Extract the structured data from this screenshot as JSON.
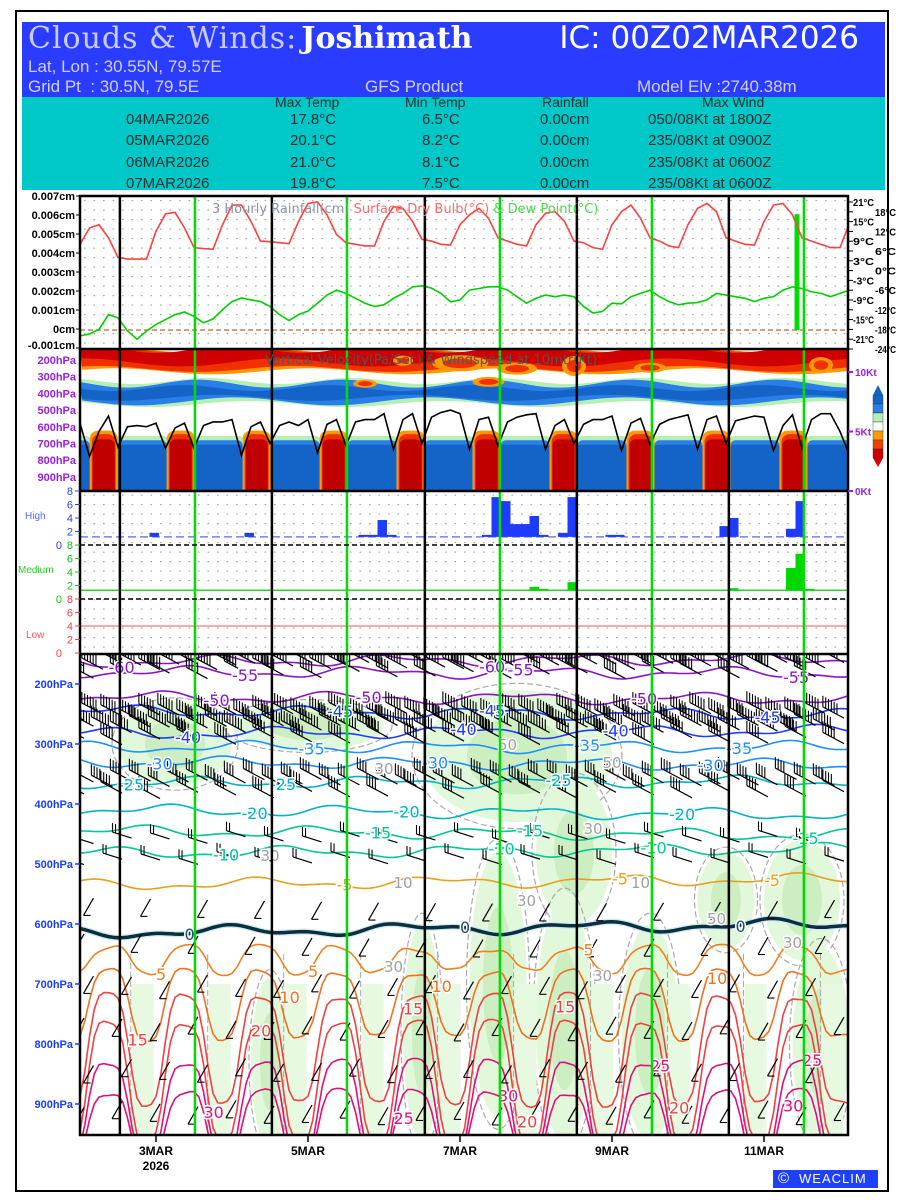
{
  "header": {
    "title_prefix": "Clouds & Winds:",
    "station": "Joshimath",
    "ic": "IC: 00Z02MAR2026",
    "latlon": "Lat, Lon : 30.55N, 79.57E",
    "gridpt": "Grid Pt  : 30.5N, 79.5E",
    "product": "GFS Product",
    "elevation": "Model Elv :2740.38m"
  },
  "summary": {
    "columns": [
      "Max Temp",
      "Min Temp",
      "Rainfall",
      "Max Wind"
    ],
    "rows": [
      {
        "date": "04MAR2026",
        "max": "17.8°C",
        "min": "6.5°C",
        "rain": "0.00cm",
        "wind": "050/08Kt at 1800Z"
      },
      {
        "date": "05MAR2026",
        "max": "20.1°C",
        "min": "8.2°C",
        "rain": "0.00cm",
        "wind": "235/08Kt at 0900Z"
      },
      {
        "date": "06MAR2026",
        "max": "21.0°C",
        "min": "8.1°C",
        "rain": "0.00cm",
        "wind": "235/08Kt at 0600Z"
      },
      {
        "date": "07MAR2026",
        "max": "19.8°C",
        "min": "7.5°C",
        "rain": "0.00cm",
        "wind": "235/08Kt at 0600Z"
      }
    ]
  },
  "footer": {
    "brand": "WEACLIM",
    "copyright_symbol": "©"
  },
  "colors": {
    "header_bg": "#2a3cff",
    "table_bg": "#00c8c8",
    "drybulb": "#ff4040",
    "dewpoint": "#00d000",
    "rain": "#00dd00",
    "high_cloud": "#1e3cff",
    "medium_cloud": "#00d800",
    "low_cloud": "#ff4040",
    "day_line_black": "#000000",
    "day_line_green": "#00dd00"
  },
  "chart_data": {
    "type": "meteogram",
    "time_axis": {
      "step_hours": 3,
      "start": "00Z02MAR2026",
      "tick_labels": [
        {
          "step": 8,
          "label": "3MAR",
          "sub": "2026"
        },
        {
          "step": 24,
          "label": "5MAR"
        },
        {
          "step": 40,
          "label": "7MAR"
        },
        {
          "step": 56,
          "label": "9MAR"
        },
        {
          "step": 72,
          "label": "11MAR"
        }
      ],
      "black_line_steps": [
        4.2,
        20.2,
        36.3,
        52.3,
        68.3
      ],
      "green_line_steps": [
        12.1,
        28.1,
        44.2,
        60.2,
        76.2
      ]
    },
    "surface": {
      "title_parts": [
        "3 Hourly Rainfall(cm)",
        " Surface Dry Bulb(°C)",
        " & Dew Point(°C)"
      ],
      "rain_axis": {
        "min": -0.001,
        "max": 0.007,
        "ticks": [
          "0.007cm",
          "0.006cm",
          "0.005cm",
          "0.004cm",
          "0.003cm",
          "0.002cm",
          "0.001cm",
          "0cm",
          "-0.001cm"
        ]
      },
      "temp_axis": {
        "min": -24,
        "max": 21,
        "ticks": [
          "21°C",
          "18°C",
          "15°C",
          "12°C",
          "9°C",
          "6°C",
          "3°C",
          "0°C",
          "-3°C",
          "-6°C",
          "-9°C",
          "-12°C",
          "-15°C",
          "-18°C",
          "-21°C",
          "-24°C"
        ]
      },
      "drybulb": [
        8,
        13,
        14,
        10,
        4,
        3.5,
        3.5,
        3.5,
        12,
        17.3,
        17.8,
        13,
        7,
        6.7,
        6.5,
        14,
        20,
        20,
        15,
        9,
        8.8,
        8.5,
        8.2,
        15,
        20.5,
        21,
        17,
        11,
        8.5,
        8,
        7.5,
        7.5,
        15,
        19.5,
        19,
        15,
        9.5,
        9,
        8,
        7.8,
        14,
        17,
        19,
        16,
        10,
        9,
        8,
        7.5,
        14,
        17.5,
        18,
        15,
        9,
        8.5,
        7,
        6.5,
        14,
        18,
        20,
        16,
        10,
        9,
        7.5,
        7,
        14,
        19,
        20.5,
        18,
        10,
        9,
        8,
        7.8,
        15,
        20,
        20.5,
        17,
        10,
        9,
        8,
        7,
        7,
        14.5
      ],
      "dewpoint": [
        -20,
        -19.4,
        -18,
        -13.5,
        -14.5,
        -18.5,
        -21,
        -18.5,
        -16.5,
        -15,
        -13.5,
        -12.7,
        -14,
        -16,
        -14.8,
        -12,
        -9.5,
        -8.4,
        -9,
        -9.5,
        -11,
        -13.5,
        -15.3,
        -13.5,
        -12.4,
        -10,
        -7.5,
        -6,
        -7,
        -8.5,
        -10,
        -11,
        -10.5,
        -8.5,
        -7,
        -5,
        -4.7,
        -5.4,
        -7,
        -9.6,
        -9,
        -6,
        -5.5,
        -5,
        -5,
        -6,
        -8,
        -10,
        -8.5,
        -7.5,
        -8,
        -7.5,
        -8,
        -11,
        -13,
        -12.5,
        -10,
        -10.2,
        -8,
        -7,
        -6,
        -8,
        -9.5,
        -10.5,
        -10,
        -9.8,
        -9,
        -7,
        -7.5,
        -8,
        -8.5,
        -9.5,
        -8.5,
        -8,
        -6,
        -5,
        -5.5,
        -6.5,
        -7,
        -8,
        -7,
        -6
      ],
      "rainfall_bars": [
        [
          75,
          0.0061
        ]
      ]
    },
    "vertical_velocity": {
      "title": "Vertical Velocity(Pa/Sec) & Windspeed at 10mtr(Kt)",
      "pressure_ticks": [
        "200hPa",
        "300hPa",
        "400hPa",
        "500hPa",
        "600hPa",
        "700hPa",
        "800hPa",
        "900hPa"
      ],
      "wind_ticks": [
        "10Kt",
        "5Kt",
        "0Kt"
      ],
      "updraft_steps": [
        2.5,
        10.6,
        18.6,
        26.7,
        34.8,
        42.8,
        50.9,
        59,
        67,
        75.1
      ],
      "wind10m_kt": [
        5.7,
        2.9,
        5,
        6.3,
        3.7,
        5.4,
        5.5,
        5.4,
        5.7,
        3.6,
        5.3,
        5.7,
        3.6,
        5.5,
        5.8,
        5.8,
        6,
        3,
        5.4,
        5.8,
        4,
        5.5,
        5.8,
        5.5,
        6,
        3.2,
        5.6,
        6,
        3.8,
        5.8,
        6,
        6,
        6.5,
        3.5,
        6,
        6.5,
        4,
        6.2,
        6.6,
        6.8,
        6.5,
        3.5,
        6,
        6.2,
        3.8,
        5.8,
        6.2,
        6.4,
        6.5,
        3.5,
        5.5,
        6,
        4,
        5.6,
        6,
        6,
        6.3,
        3.4,
        5.7,
        6.1,
        3.9,
        5.6,
        6,
        6.2,
        6.4,
        3.5,
        6,
        6.3,
        4,
        5.9,
        6.1,
        6.3,
        6.2,
        3.4,
        5.5,
        6.4,
        3.6,
        6,
        6.5,
        6.5,
        5,
        3
      ],
      "legend_colors": [
        "#1464c8",
        "#2a7ee8",
        "#b4f0b4",
        "#ffffff",
        "#ff9900",
        "#f04000",
        "#d00000"
      ]
    },
    "clouds": {
      "scale_ticks": [
        "8",
        "6",
        "4",
        "2",
        "0"
      ],
      "high": {
        "label": "High",
        "bars": [
          [
            7,
            1.8
          ],
          [
            17,
            1.8
          ],
          [
            29,
            1.5
          ],
          [
            30,
            1.5
          ],
          [
            31,
            3.7
          ],
          [
            32,
            1.5
          ],
          [
            42,
            1.5
          ],
          [
            43,
            7.1
          ],
          [
            44,
            6.5
          ],
          [
            45,
            3.1
          ],
          [
            46,
            3.1
          ],
          [
            47,
            4.3
          ],
          [
            48,
            1.5
          ],
          [
            50,
            1.8
          ],
          [
            51,
            7.1
          ],
          [
            55,
            1.5
          ],
          [
            56,
            1.5
          ],
          [
            67,
            2.8
          ],
          [
            68,
            4
          ],
          [
            74,
            2.4
          ],
          [
            75,
            6.5
          ]
        ]
      },
      "medium": {
        "label": "Medium",
        "bars": [
          [
            47,
            1.8
          ],
          [
            48,
            1.5
          ],
          [
            51,
            2.5
          ],
          [
            68,
            1.6
          ],
          [
            74,
            4.6
          ],
          [
            75,
            6.7
          ],
          [
            76,
            1.5
          ]
        ]
      },
      "low": {
        "label": "Low",
        "bars": [],
        "reference_line": 4
      }
    },
    "upper_air": {
      "pressure_ticks": [
        "200hPa",
        "300hPa",
        "400hPa",
        "500hPa",
        "600hPa",
        "700hPa",
        "800hPa",
        "900hPa"
      ],
      "isotherms": [
        {
          "label": "-60",
          "p0": 163,
          "p1": 158,
          "color": "#8c14c8"
        },
        {
          "label": "-55",
          "p0": 180,
          "p1": 182,
          "color": "#8c14c8"
        },
        {
          "label": "-50",
          "p0": 222,
          "p1": 225,
          "color": "#8c14c8"
        },
        {
          "label": "-45",
          "p0": 245,
          "p1": 252,
          "color": "#1e3cff"
        },
        {
          "label": "-40",
          "p0": 283,
          "p1": 278,
          "color": "#1e3cff"
        },
        {
          "label": "-35",
          "p0": 305,
          "p1": 305,
          "color": "#1e90ff"
        },
        {
          "label": "-30",
          "p0": 330,
          "p1": 335,
          "color": "#1e90ff"
        },
        {
          "label": "-25",
          "p0": 365,
          "p1": 362,
          "color": "#00b4c8"
        },
        {
          "label": "-20",
          "p0": 410,
          "p1": 418,
          "color": "#00b4c8"
        },
        {
          "label": "-15",
          "p0": 445,
          "p1": 452,
          "color": "#00c896"
        },
        {
          "label": "-10",
          "p0": 482,
          "p1": 475,
          "color": "#00c896"
        },
        {
          "label": "-5",
          "p0": 535,
          "p1": 525,
          "color": "#e6a020"
        },
        {
          "label": "0",
          "p0": 615,
          "p1": 600,
          "color": "#0a3040"
        },
        {
          "label": "5",
          "p_day": 640,
          "p_night": 680,
          "color": "#f08020"
        },
        {
          "label": "10",
          "p_day": 680,
          "p_night": 790,
          "color": "#f07020"
        },
        {
          "label": "15",
          "p_day": 720,
          "p_night": 900,
          "color": "#f04040"
        },
        {
          "label": "20",
          "p_day": 765,
          "p_night": 965,
          "color": "#f04040"
        },
        {
          "label": "25",
          "p_day": 830,
          "p_night": 990,
          "color": "#e0107a"
        },
        {
          "label": "30",
          "p_day": 880,
          "p_night": 1000,
          "color": "#e0107a"
        }
      ],
      "rh_regions": [
        {
          "step": 10,
          "p": 300,
          "ds": 6,
          "dp": 70,
          "rh": "70"
        },
        {
          "step": 24,
          "p": 270,
          "ds": 8,
          "dp": 40,
          "rh": "50"
        },
        {
          "step": 46,
          "p": 320,
          "ds": 10,
          "dp": 110,
          "rh": "70"
        },
        {
          "step": 52,
          "p": 480,
          "ds": 4,
          "dp": 120,
          "rh": "50"
        },
        {
          "step": 36,
          "p": 780,
          "ds": 2,
          "dp": 180,
          "rh": "50"
        },
        {
          "step": 44,
          "p": 700,
          "ds": 3,
          "dp": 220,
          "rh": "50"
        },
        {
          "step": 51,
          "p": 760,
          "ds": 3,
          "dp": 200,
          "rh": "50"
        },
        {
          "step": 60,
          "p": 780,
          "ds": 3,
          "dp": 180,
          "rh": "50"
        },
        {
          "step": 68,
          "p": 560,
          "ds": 3,
          "dp": 80,
          "rh": "50"
        },
        {
          "step": 76,
          "p": 560,
          "ds": 4,
          "dp": 100,
          "rh": "50"
        },
        {
          "step": 78,
          "p": 800,
          "ds": 3,
          "dp": 160,
          "rh": "50"
        },
        {
          "step": 20,
          "p": 830,
          "ds": 2,
          "dp": 140,
          "rh": "30"
        }
      ],
      "rh_labels": [
        {
          "step": 31,
          "p": 350,
          "text": "30"
        },
        {
          "step": 44,
          "p": 310,
          "text": "50"
        },
        {
          "step": 50,
          "p": 340,
          "text": "50"
        },
        {
          "step": 53,
          "p": 450,
          "text": "30"
        },
        {
          "step": 33,
          "p": 540,
          "text": "10"
        },
        {
          "step": 58,
          "p": 540,
          "text": "10"
        },
        {
          "step": 46,
          "p": 570,
          "text": "30"
        },
        {
          "step": 67,
          "p": 600,
          "text": "50"
        },
        {
          "step": 74,
          "p": 640,
          "text": "30"
        },
        {
          "step": 32,
          "p": 680,
          "text": "30"
        },
        {
          "step": 54,
          "p": 695,
          "text": "30"
        },
        {
          "step": 19,
          "p": 495,
          "text": "30"
        }
      ],
      "wind_profile": [
        {
          "p": 170,
          "kt": 60,
          "every": 1
        },
        {
          "p": 185,
          "kt": 50,
          "every": 2
        },
        {
          "p": 255,
          "kt": 60,
          "every": 1
        },
        {
          "p": 275,
          "kt": 70,
          "every": 1
        },
        {
          "p": 295,
          "kt": 50,
          "every": 2
        },
        {
          "p": 365,
          "kt": 40,
          "every": 1
        },
        {
          "p": 385,
          "kt": 40,
          "every": 2
        },
        {
          "p": 460,
          "kt": 20,
          "every": 2
        },
        {
          "p": 495,
          "kt": 15,
          "every": 2
        },
        {
          "p": 560,
          "kt": 10,
          "every": 3
        },
        {
          "p": 620,
          "kt": 8,
          "every": 3
        },
        {
          "p": 690,
          "kt": 8,
          "every": 2
        },
        {
          "p": 760,
          "kt": 8,
          "every": 2
        },
        {
          "p": 830,
          "kt": 8,
          "every": 2
        },
        {
          "p": 900,
          "kt": 8,
          "every": 2
        }
      ]
    }
  }
}
